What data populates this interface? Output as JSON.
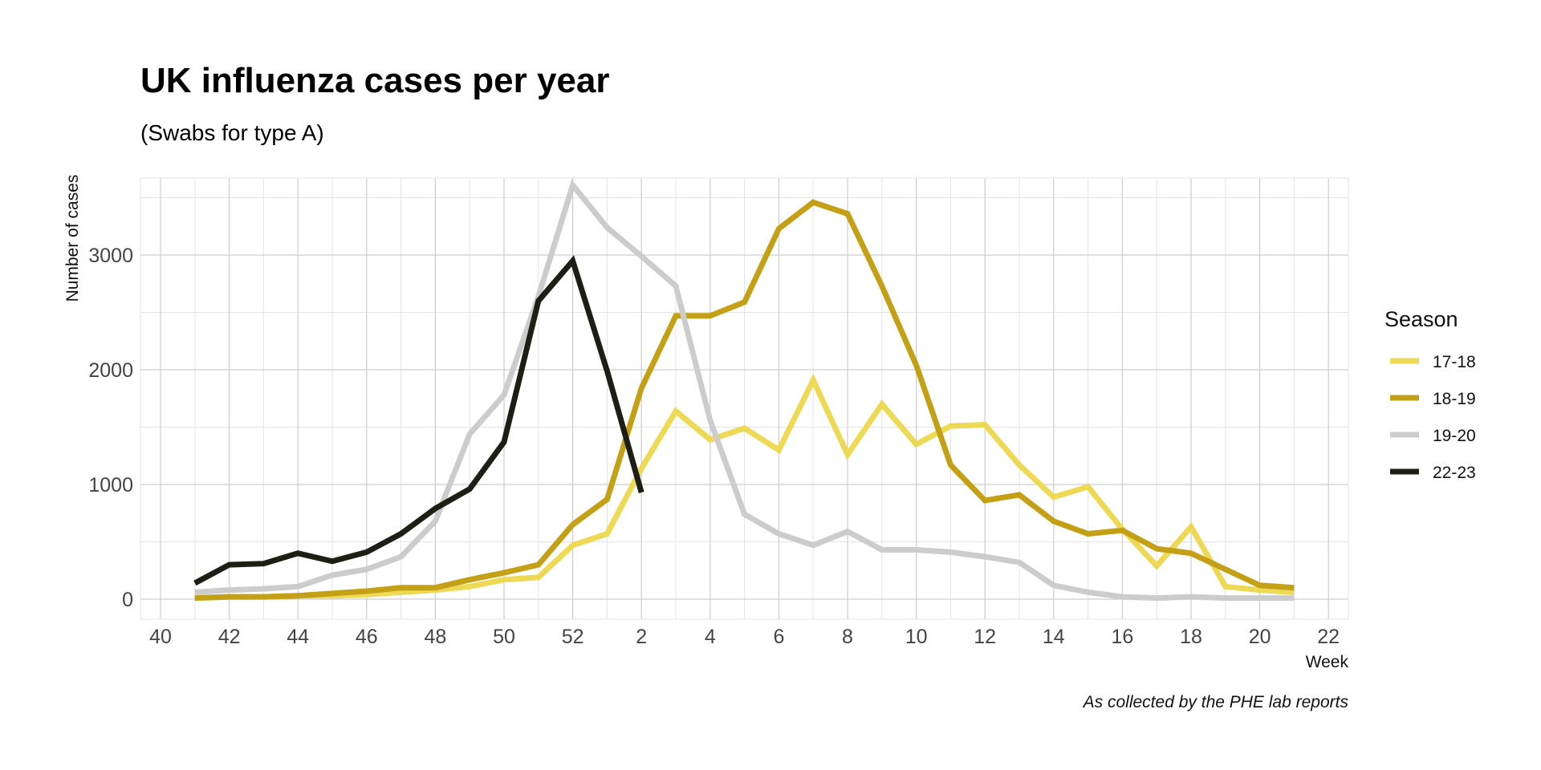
{
  "chart_data": {
    "type": "line",
    "title": "UK influenza cases per year",
    "subtitle": "(Swabs for type A)",
    "xlabel": "Week",
    "ylabel": "Number of cases",
    "caption": "As collected by the PHE lab reports",
    "legend_title": "Season",
    "legend_position": "right",
    "grid": true,
    "x_ticks": [
      "40",
      "42",
      "44",
      "46",
      "48",
      "50",
      "52",
      "2",
      "4",
      "6",
      "8",
      "10",
      "12",
      "14",
      "16",
      "18",
      "20",
      "22"
    ],
    "y_ticks": [
      0,
      1000,
      2000,
      3000
    ],
    "ylim": [
      -180,
      3650
    ],
    "x": [
      "41",
      "42",
      "43",
      "44",
      "45",
      "46",
      "47",
      "48",
      "49",
      "50",
      "51",
      "52",
      "1",
      "2",
      "3",
      "4",
      "5",
      "6",
      "7",
      "8",
      "9",
      "10",
      "11",
      "12",
      "13",
      "14",
      "15",
      "16",
      "17",
      "18",
      "19",
      "20",
      "21"
    ],
    "series": [
      {
        "name": "17-18",
        "color": "#EDD954",
        "values": [
          10,
          20,
          20,
          30,
          30,
          40,
          60,
          80,
          110,
          170,
          190,
          470,
          570,
          1140,
          1640,
          1390,
          1490,
          1300,
          1910,
          1260,
          1700,
          1350,
          1510,
          1520,
          1170,
          890,
          980,
          610,
          290,
          630,
          110,
          80,
          60
        ]
      },
      {
        "name": "18-19",
        "color": "#C4A016",
        "values": [
          10,
          20,
          20,
          30,
          50,
          70,
          100,
          100,
          170,
          230,
          300,
          650,
          870,
          1840,
          2470,
          2470,
          2590,
          3230,
          3460,
          3360,
          2730,
          2040,
          1170,
          860,
          910,
          680,
          570,
          600,
          440,
          400,
          260,
          120,
          100
        ]
      },
      {
        "name": "19-20",
        "color": "#CCCCCC",
        "values": [
          60,
          80,
          90,
          110,
          210,
          260,
          370,
          680,
          1440,
          1780,
          2640,
          3610,
          3240,
          2990,
          2730,
          1560,
          740,
          570,
          470,
          590,
          430,
          430,
          410,
          370,
          320,
          120,
          60,
          20,
          10,
          20,
          10,
          10,
          10
        ]
      },
      {
        "name": "22-23",
        "color": "#1E1F14",
        "values": [
          140,
          300,
          310,
          400,
          330,
          410,
          570,
          790,
          960,
          1370,
          2600,
          2950,
          1990,
          930,
          null,
          null,
          null,
          null,
          null,
          null,
          null,
          null,
          null,
          null,
          null,
          null,
          null,
          null,
          null,
          null,
          null,
          null,
          null
        ]
      }
    ]
  }
}
